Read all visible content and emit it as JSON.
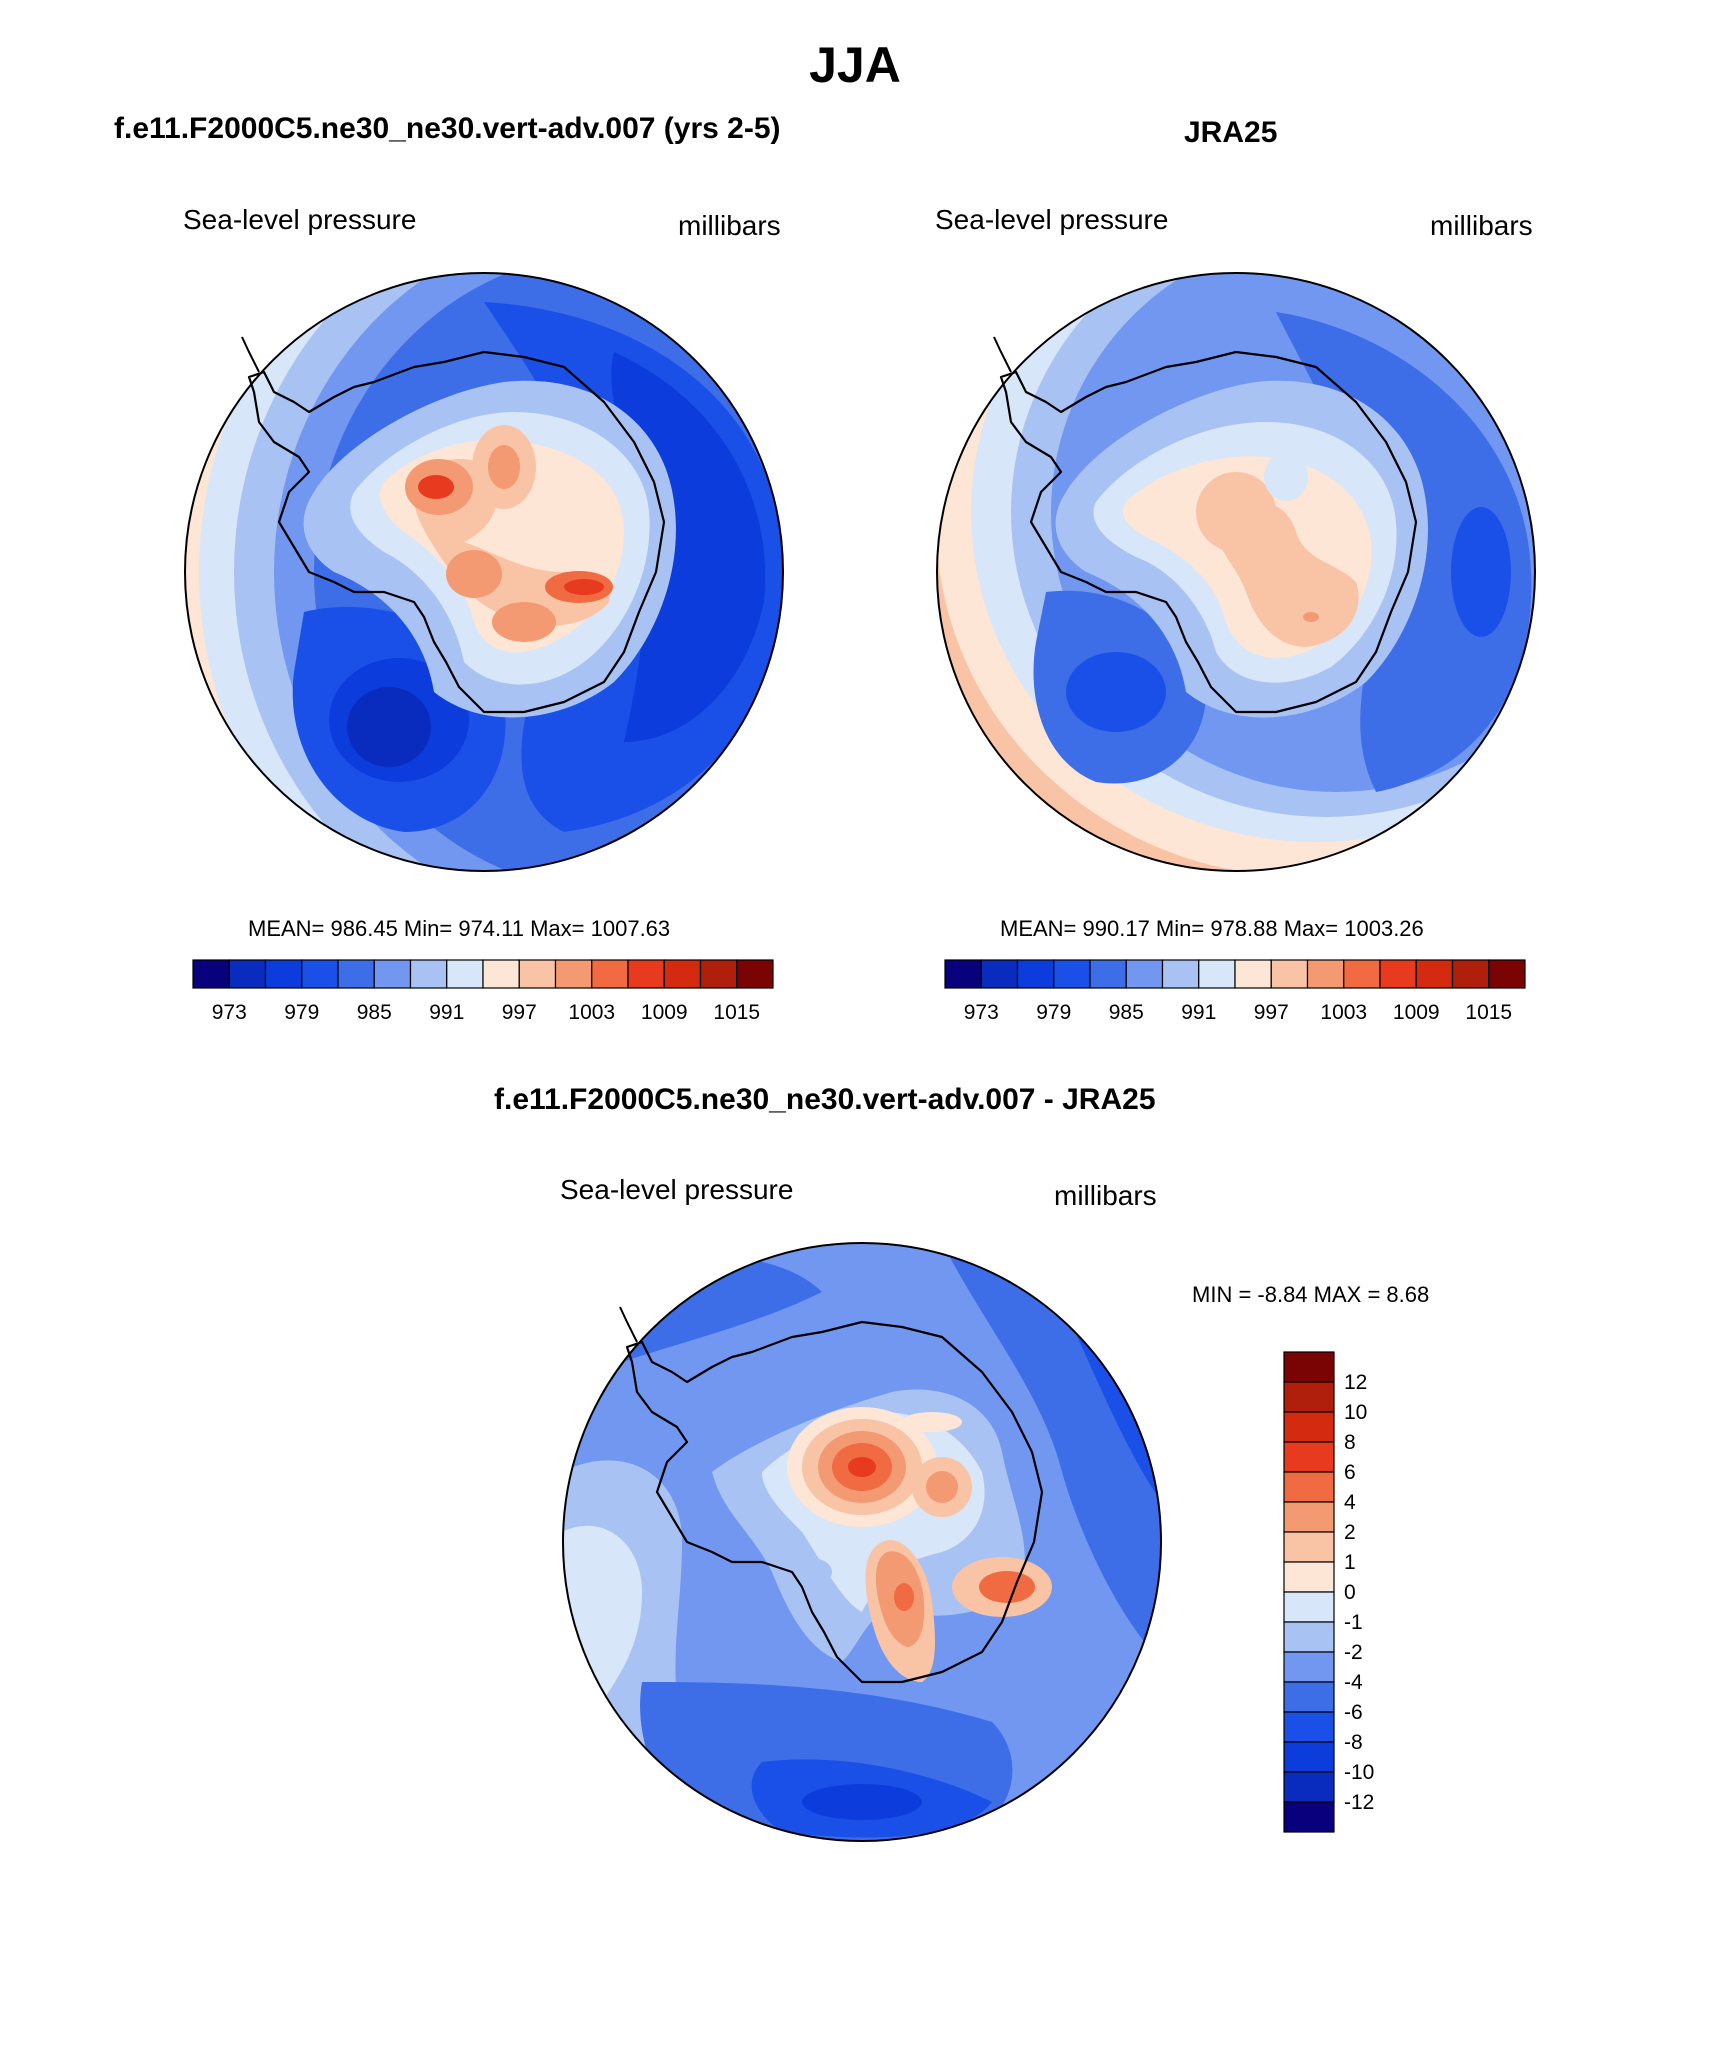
{
  "title": "JJA",
  "panels": [
    {
      "id": "model",
      "title": "f.e11.F2000C5.ne30_ne30.vert-adv.007 (yrs 2-5)",
      "left_label": "Sea-level pressure",
      "right_label": "millibars",
      "stats": "MEAN= 986.45  Min= 974.11  Max= 1007.63"
    },
    {
      "id": "obs",
      "title": "JRA25",
      "left_label": "Sea-level pressure",
      "right_label": "millibars",
      "stats": "MEAN= 990.17  Min= 978.88  Max= 1003.26"
    },
    {
      "id": "diff",
      "title": "f.e11.F2000C5.ne30_ne30.vert-adv.007 - JRA25",
      "left_label": "Sea-level pressure",
      "right_label": "millibars",
      "stats": "MIN =  -8.84 MAX =   8.68"
    }
  ],
  "chart_data": [
    {
      "type": "heatmap",
      "title": "f.e11.F2000C5.ne30_ne30.vert-adv.007 (yrs 2-5)",
      "variable": "Sea-level pressure",
      "units": "millibars",
      "projection": "south polar stereographic",
      "mean": 986.45,
      "min": 974.11,
      "max": 1007.63,
      "colorbar_ticks": [
        "973",
        "979",
        "985",
        "991",
        "997",
        "1003",
        "1009",
        "1015"
      ]
    },
    {
      "type": "heatmap",
      "title": "JRA25",
      "variable": "Sea-level pressure",
      "units": "millibars",
      "projection": "south polar stereographic",
      "mean": 990.17,
      "min": 978.88,
      "max": 1003.26,
      "colorbar_ticks": [
        "973",
        "979",
        "985",
        "991",
        "997",
        "1003",
        "1009",
        "1015"
      ]
    },
    {
      "type": "heatmap",
      "title": "f.e11.F2000C5.ne30_ne30.vert-adv.007 - JRA25",
      "variable": "Sea-level pressure",
      "units": "millibars",
      "projection": "south polar stereographic",
      "min": -8.84,
      "max": 8.68,
      "colorbar_ticks": [
        "12",
        "10",
        "8",
        "6",
        "4",
        "2",
        "1",
        "0",
        "-1",
        "-2",
        "-4",
        "-6",
        "-8",
        "-10",
        "-12"
      ]
    }
  ],
  "colors": {
    "palette": [
      "#08007d",
      "#0a2cbe",
      "#0c3ddc",
      "#1a50e8",
      "#3d6ee8",
      "#7197f0",
      "#a8c2f4",
      "#d7e6f8",
      "#fde6d6",
      "#f9c3a6",
      "#f49a72",
      "#f06a42",
      "#e83a1e",
      "#d42a10",
      "#b01e0c",
      "#7a0404"
    ]
  }
}
